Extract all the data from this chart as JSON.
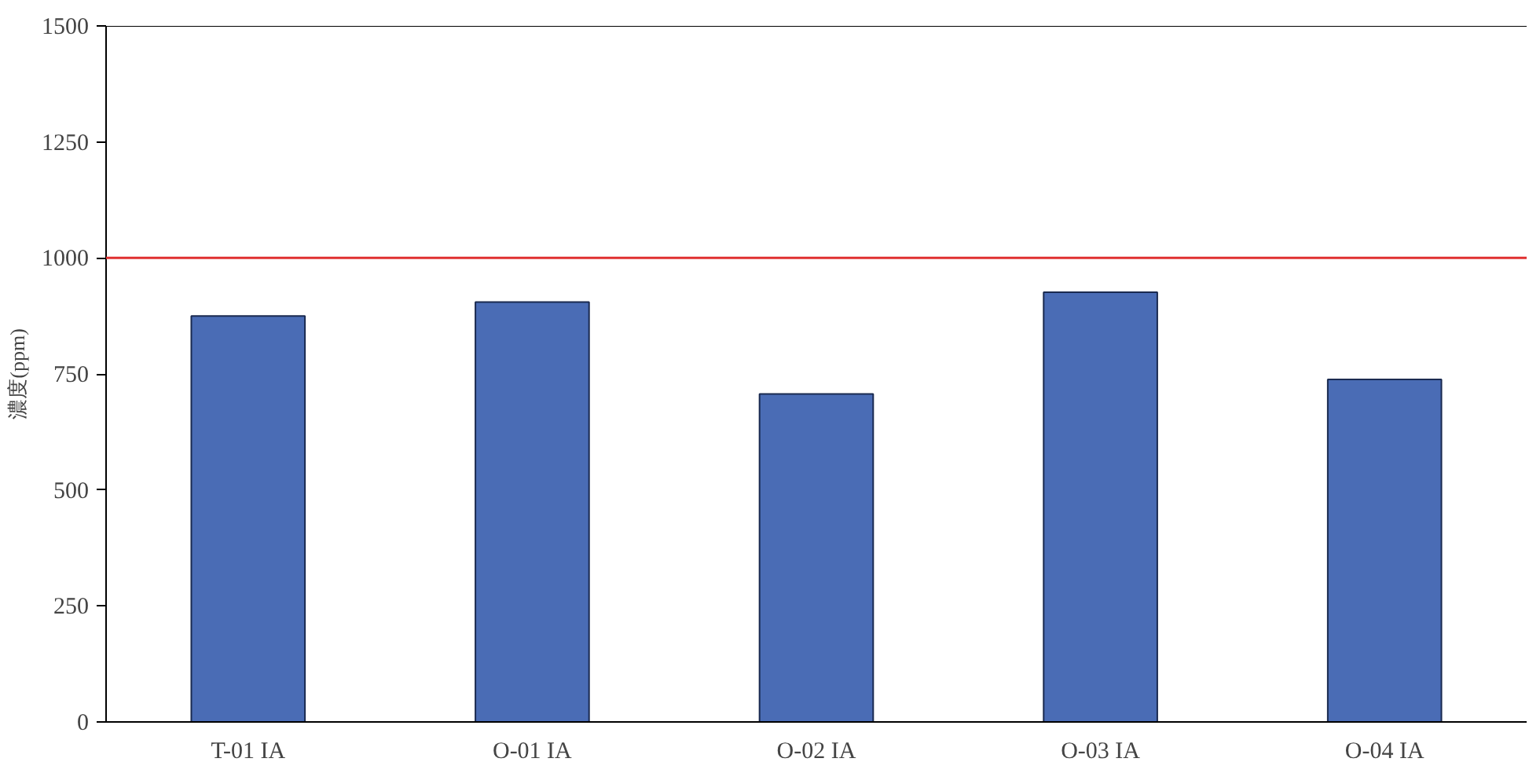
{
  "chart_data": {
    "type": "bar",
    "ylabel": "濃度(ppm)",
    "categories": [
      "T-01 IA",
      "O-01 IA",
      "O-02 IA",
      "O-03 IA",
      "O-04 IA"
    ],
    "values": [
      875,
      905,
      707,
      926,
      738
    ],
    "color": "#4a6cb5",
    "ylim": [
      0,
      1500
    ],
    "yticks": [
      0,
      250,
      500,
      750,
      1000,
      1250,
      1500
    ],
    "grid": false,
    "ref_lines": [
      {
        "axis": "y",
        "value": 1000,
        "color": "#e03030"
      }
    ]
  }
}
